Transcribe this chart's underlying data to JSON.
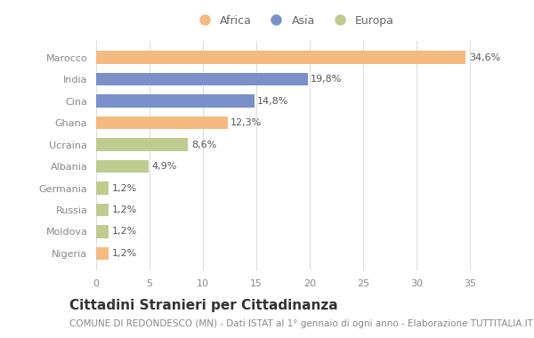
{
  "categories": [
    "Marocco",
    "India",
    "Cina",
    "Ghana",
    "Ucraina",
    "Albania",
    "Germania",
    "Russia",
    "Moldova",
    "Nigeria"
  ],
  "values": [
    34.6,
    19.8,
    14.8,
    12.3,
    8.6,
    4.9,
    1.2,
    1.2,
    1.2,
    1.2
  ],
  "labels": [
    "34,6%",
    "19,8%",
    "14,8%",
    "12,3%",
    "8,6%",
    "4,9%",
    "1,2%",
    "1,2%",
    "1,2%",
    "1,2%"
  ],
  "colors": [
    "#F5BA80",
    "#7B90C9",
    "#7B90C9",
    "#F5BA80",
    "#BFCC8F",
    "#BFCC8F",
    "#BFCC8F",
    "#BFCC8F",
    "#BFCC8F",
    "#F5BA80"
  ],
  "legend_labels": [
    "Africa",
    "Asia",
    "Europa"
  ],
  "legend_colors": [
    "#F5BA80",
    "#7B90C9",
    "#BFCC8F"
  ],
  "title": "Cittadini Stranieri per Cittadinanza",
  "subtitle": "COMUNE DI REDONDESCO (MN) - Dati ISTAT al 1° gennaio di ogni anno - Elaborazione TUTTITALIA.IT",
  "xlim": [
    0,
    37
  ],
  "xticks": [
    0,
    5,
    10,
    15,
    20,
    25,
    30,
    35
  ],
  "background_color": "#ffffff",
  "bar_height": 0.6,
  "title_fontsize": 11,
  "subtitle_fontsize": 7.5,
  "label_fontsize": 8,
  "tick_fontsize": 8,
  "legend_fontsize": 9
}
